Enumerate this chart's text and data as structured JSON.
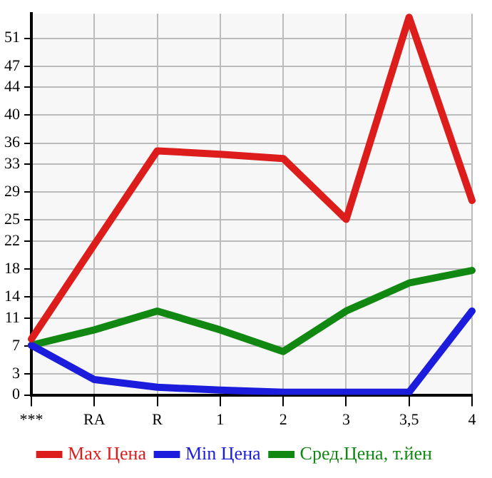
{
  "chart_data": {
    "type": "line",
    "categories": [
      "***",
      "RA",
      "R",
      "1",
      "2",
      "3",
      "3,5",
      "4"
    ],
    "series": [
      {
        "name": "Max Цена",
        "color": "#dd1c1c",
        "values": [
          8,
          21.5,
          34.9,
          34.4,
          33.8,
          25.1,
          54,
          27.8
        ]
      },
      {
        "name": "Min Цена",
        "color": "#1c1cdd",
        "values": [
          7.1,
          2.2,
          1.1,
          0.7,
          0.4,
          0.4,
          0.4,
          12
        ]
      },
      {
        "name": "Сред.Цена, т.йен",
        "color": "#118811",
        "values": [
          7.1,
          9.3,
          12,
          9.3,
          6.2,
          12,
          16,
          17.8
        ]
      }
    ],
    "ylim": [
      0,
      54.5
    ],
    "yticks": [
      0,
      3,
      7,
      11,
      14,
      18,
      22,
      25,
      29,
      33,
      36,
      40,
      44,
      47,
      51
    ],
    "grid": true,
    "legend": "bottom",
    "marker": "none",
    "line_style": "solid"
  }
}
